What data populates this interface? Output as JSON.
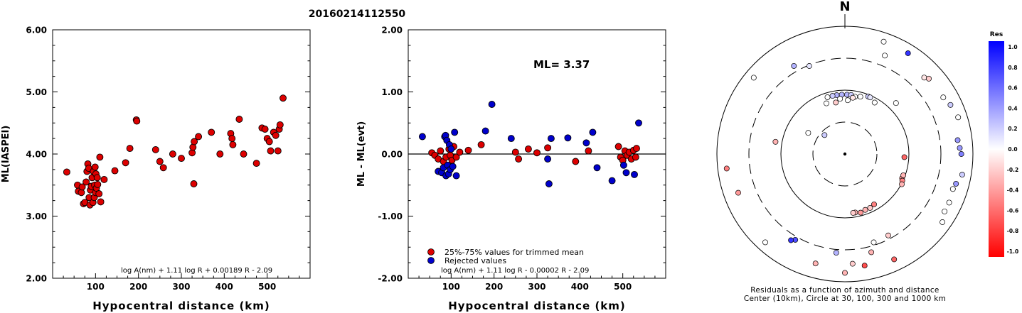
{
  "figure_title": "20160214112550",
  "chart_data": [
    {
      "type": "scatter",
      "xlabel": "Hypocentral distance (km)",
      "ylabel": "ML(IASPEI)",
      "xlim": [
        0,
        600
      ],
      "ylim": [
        2.0,
        6.0
      ],
      "xticks": [
        "100",
        "200",
        "300",
        "400",
        "500"
      ],
      "yticks": [
        "2.00",
        "3.00",
        "4.00",
        "5.00",
        "6.00"
      ],
      "formula": "log A(nm) + 1.11 log R + 0.00189 R - 2.09",
      "marker_color": "#dd0000",
      "points": [
        [
          33,
          3.71
        ],
        [
          58,
          3.5
        ],
        [
          60,
          3.4
        ],
        [
          67,
          3.38
        ],
        [
          69,
          3.47
        ],
        [
          72,
          3.2
        ],
        [
          75,
          3.22
        ],
        [
          78,
          3.55
        ],
        [
          80,
          3.72
        ],
        [
          82,
          3.84
        ],
        [
          84,
          3.77
        ],
        [
          85,
          3.3
        ],
        [
          87,
          3.18
        ],
        [
          88,
          3.42
        ],
        [
          90,
          3.48
        ],
        [
          92,
          3.62
        ],
        [
          94,
          3.22
        ],
        [
          95,
          3.72
        ],
        [
          97,
          3.3
        ],
        [
          98,
          3.5
        ],
        [
          99,
          3.79
        ],
        [
          100,
          3.38
        ],
        [
          101,
          3.68
        ],
        [
          102,
          3.45
        ],
        [
          104,
          3.62
        ],
        [
          105,
          3.51
        ],
        [
          108,
          3.36
        ],
        [
          110,
          3.95
        ],
        [
          112,
          3.23
        ],
        [
          120,
          3.59
        ],
        [
          145,
          3.73
        ],
        [
          170,
          3.86
        ],
        [
          180,
          4.09
        ],
        [
          195,
          4.55
        ],
        [
          196,
          4.53
        ],
        [
          240,
          4.07
        ],
        [
          250,
          3.88
        ],
        [
          258,
          3.78
        ],
        [
          280,
          4.0
        ],
        [
          300,
          3.93
        ],
        [
          325,
          4.02
        ],
        [
          327,
          4.11
        ],
        [
          329,
          3.52
        ],
        [
          330,
          4.2
        ],
        [
          340,
          4.28
        ],
        [
          370,
          4.35
        ],
        [
          390,
          4.0
        ],
        [
          415,
          4.33
        ],
        [
          418,
          4.25
        ],
        [
          420,
          4.15
        ],
        [
          435,
          4.56
        ],
        [
          445,
          4.0
        ],
        [
          475,
          3.85
        ],
        [
          488,
          4.42
        ],
        [
          495,
          4.4
        ],
        [
          500,
          4.25
        ],
        [
          505,
          4.2
        ],
        [
          508,
          4.05
        ],
        [
          515,
          4.35
        ],
        [
          520,
          4.3
        ],
        [
          525,
          4.05
        ],
        [
          528,
          4.4
        ],
        [
          530,
          4.47
        ],
        [
          537,
          4.9
        ]
      ]
    },
    {
      "type": "scatter",
      "xlabel": "Hypocentral distance (km)",
      "ylabel": "ML - ML(evt)",
      "xlim": [
        0,
        600
      ],
      "ylim": [
        -2.0,
        2.0
      ],
      "xticks": [
        "100",
        "200",
        "300",
        "400",
        "500"
      ],
      "yticks": [
        "-2.00",
        "-1.00",
        "0.00",
        "1.00",
        "2.00"
      ],
      "annotation": "ML= 3.37",
      "formula": "log A(nm) + 1.11 log R - 0.00002 R - 2.09",
      "legend": [
        {
          "label": "25%-75% values for trimmed mean",
          "color": "#dd0000"
        },
        {
          "label": "Rejected values",
          "color": "#0000cc"
        }
      ],
      "series": [
        {
          "name": "25%-75% values for trimmed mean",
          "color": "#dd0000",
          "points": [
            [
              55,
              0.02
            ],
            [
              62,
              -0.02
            ],
            [
              70,
              -0.08
            ],
            [
              75,
              0.05
            ],
            [
              82,
              -0.12
            ],
            [
              88,
              -0.05
            ],
            [
              95,
              0.08
            ],
            [
              98,
              -0.02
            ],
            [
              102,
              -0.1
            ],
            [
              106,
              0.12
            ],
            [
              112,
              -0.05
            ],
            [
              120,
              0.03
            ],
            [
              140,
              0.06
            ],
            [
              170,
              0.15
            ],
            [
              250,
              0.03
            ],
            [
              257,
              -0.08
            ],
            [
              280,
              0.08
            ],
            [
              300,
              0.02
            ],
            [
              325,
              0.1
            ],
            [
              390,
              -0.12
            ],
            [
              420,
              0.05
            ],
            [
              490,
              0.12
            ],
            [
              495,
              -0.05
            ],
            [
              500,
              -0.1
            ],
            [
              505,
              0.05
            ],
            [
              510,
              -0.02
            ],
            [
              515,
              0.03
            ],
            [
              520,
              -0.08
            ],
            [
              525,
              0.06
            ],
            [
              530,
              -0.05
            ],
            [
              532,
              0.09
            ]
          ]
        },
        {
          "name": "Rejected values",
          "color": "#0000cc",
          "points": [
            [
              33,
              0.28
            ],
            [
              70,
              -0.28
            ],
            [
              78,
              -0.3
            ],
            [
              82,
              -0.22
            ],
            [
              85,
              0.28
            ],
            [
              87,
              0.3
            ],
            [
              88,
              -0.35
            ],
            [
              90,
              0.22
            ],
            [
              92,
              -0.18
            ],
            [
              94,
              -0.32
            ],
            [
              96,
              0.15
            ],
            [
              98,
              -0.25
            ],
            [
              100,
              0.08
            ],
            [
              104,
              -0.2
            ],
            [
              108,
              0.35
            ],
            [
              112,
              -0.35
            ],
            [
              180,
              0.37
            ],
            [
              195,
              0.8
            ],
            [
              240,
              0.25
            ],
            [
              325,
              -0.08
            ],
            [
              328,
              -0.48
            ],
            [
              333,
              0.25
            ],
            [
              372,
              0.26
            ],
            [
              415,
              0.18
            ],
            [
              430,
              0.35
            ],
            [
              440,
              -0.22
            ],
            [
              475,
              -0.43
            ],
            [
              502,
              -0.18
            ],
            [
              508,
              -0.3
            ],
            [
              527,
              -0.33
            ],
            [
              537,
              0.5
            ]
          ]
        }
      ]
    },
    {
      "type": "polar",
      "north_label": "N",
      "caption_line1": "Residuals as a function of azimuth and distance",
      "caption_line2": "Center (10km), Circle at 30, 100, 300 and 1000 km",
      "rings_km": [
        30,
        100,
        300,
        1000
      ],
      "colorbar": {
        "title": "Res",
        "ticks": [
          "1.0",
          "0.8",
          "0.6",
          "0.4",
          "0.2",
          "0.0",
          "-0.2",
          "-0.4",
          "-0.6",
          "-0.8",
          "-1.0"
        ],
        "high_color": "#0000ff",
        "mid_color": "#ffffff",
        "low_color": "#ff0000"
      },
      "stations": [
        {
          "azimuth_deg": 0,
          "distance_km": 8,
          "residual": null
        },
        {
          "azimuth_deg": 19,
          "distance_km": 1000,
          "residual": 0.0
        },
        {
          "azimuth_deg": 32,
          "distance_km": 1000,
          "residual": 0.8
        },
        {
          "azimuth_deg": 46,
          "distance_km": 700,
          "residual": -0.1
        },
        {
          "azimuth_deg": 48,
          "distance_km": 780,
          "residual": -0.2
        },
        {
          "azimuth_deg": 22,
          "distance_km": 600,
          "residual": 0.0
        },
        {
          "azimuth_deg": 30,
          "distance_km": 100,
          "residual": 0.0
        },
        {
          "azimuth_deg": 60,
          "distance_km": 800,
          "residual": 0.0
        },
        {
          "azimuth_deg": 45,
          "distance_km": 160,
          "residual": 0.0
        },
        {
          "azimuth_deg": 2,
          "distance_km": 100,
          "residual": 0.3
        },
        {
          "azimuth_deg": 357,
          "distance_km": 100,
          "residual": 0.3
        },
        {
          "azimuth_deg": 352,
          "distance_km": 100,
          "residual": 0.3
        },
        {
          "azimuth_deg": 348,
          "distance_km": 100,
          "residual": 0.2
        },
        {
          "azimuth_deg": 343,
          "distance_km": 100,
          "residual": 0.0
        },
        {
          "azimuth_deg": 3,
          "distance_km": 80,
          "residual": 0.0
        },
        {
          "azimuth_deg": 6,
          "distance_km": 100,
          "residual": 0.2
        },
        {
          "azimuth_deg": 10,
          "distance_km": 95,
          "residual": 0.0
        },
        {
          "azimuth_deg": 15,
          "distance_km": 100,
          "residual": 0.0
        },
        {
          "azimuth_deg": 355,
          "distance_km": 85,
          "residual": 0.0
        },
        {
          "azimuth_deg": 340,
          "distance_km": 80,
          "residual": 0.0
        },
        {
          "azimuth_deg": 350,
          "distance_km": 75,
          "residual": -0.2
        },
        {
          "azimuth_deg": 8,
          "distance_km": 90,
          "residual": -0.1
        },
        {
          "azimuth_deg": 22,
          "distance_km": 110,
          "residual": 0.2
        },
        {
          "azimuth_deg": 24,
          "distance_km": 110,
          "residual": 0.1
        },
        {
          "azimuth_deg": 330,
          "distance_km": 500,
          "residual": 0.3
        },
        {
          "azimuth_deg": 338,
          "distance_km": 380,
          "residual": 0.1
        },
        {
          "azimuth_deg": 310,
          "distance_km": 1000,
          "residual": 0.0
        },
        {
          "azimuth_deg": 300,
          "distance_km": 50,
          "residual": 0.0
        },
        {
          "azimuth_deg": 313,
          "distance_km": 28,
          "residual": 0.2
        },
        {
          "azimuth_deg": 65,
          "distance_km": 900,
          "residual": 0.2
        },
        {
          "azimuth_deg": 72,
          "distance_km": 1000,
          "residual": 0.0
        },
        {
          "azimuth_deg": 83,
          "distance_km": 800,
          "residual": 0.4
        },
        {
          "azimuth_deg": 87,
          "distance_km": 850,
          "residual": 0.4
        },
        {
          "azimuth_deg": 90,
          "distance_km": 900,
          "residual": 0.5
        },
        {
          "azimuth_deg": 100,
          "distance_km": 1000,
          "residual": 0.2
        },
        {
          "azimuth_deg": 105,
          "distance_km": 850,
          "residual": 0.4
        },
        {
          "azimuth_deg": 108,
          "distance_km": 800,
          "residual": 0.0
        },
        {
          "azimuth_deg": 115,
          "distance_km": 850,
          "residual": 0.0
        },
        {
          "azimuth_deg": 120,
          "distance_km": 850,
          "residual": 0.0
        },
        {
          "azimuth_deg": 125,
          "distance_km": 1000,
          "residual": 0.0
        },
        {
          "azimuth_deg": 93,
          "distance_km": 100,
          "residual": -0.6
        },
        {
          "azimuth_deg": 113,
          "distance_km": 110,
          "residual": -0.4
        },
        {
          "azimuth_deg": 115,
          "distance_km": 115,
          "residual": -0.5
        },
        {
          "azimuth_deg": 118,
          "distance_km": 120,
          "residual": -0.3
        },
        {
          "azimuth_deg": 110,
          "distance_km": 110,
          "residual": -0.3
        },
        {
          "azimuth_deg": 150,
          "distance_km": 95,
          "residual": -0.5
        },
        {
          "azimuth_deg": 155,
          "distance_km": 100,
          "residual": -0.2
        },
        {
          "azimuth_deg": 160,
          "distance_km": 100,
          "residual": -0.3
        },
        {
          "azimuth_deg": 165,
          "distance_km": 105,
          "residual": -0.4
        },
        {
          "azimuth_deg": 170,
          "distance_km": 100,
          "residual": -0.3
        },
        {
          "azimuth_deg": 172,
          "distance_km": 100,
          "residual": -0.2
        },
        {
          "azimuth_deg": 152,
          "distance_km": 340,
          "residual": -0.2
        },
        {
          "azimuth_deg": 162,
          "distance_km": 350,
          "residual": 0.0
        },
        {
          "azimuth_deg": 165,
          "distance_km": 500,
          "residual": -0.3
        },
        {
          "azimuth_deg": 170,
          "distance_km": 800,
          "residual": -0.7
        },
        {
          "azimuth_deg": 176,
          "distance_km": 700,
          "residual": -0.2
        },
        {
          "azimuth_deg": 155,
          "distance_km": 900,
          "residual": -0.6
        },
        {
          "azimuth_deg": 180,
          "distance_km": 1000,
          "residual": -0.3
        },
        {
          "azimuth_deg": 195,
          "distance_km": 800,
          "residual": -0.3
        },
        {
          "azimuth_deg": 185,
          "distance_km": 450,
          "residual": 0.3
        },
        {
          "azimuth_deg": 210,
          "distance_km": 450,
          "residual": 0.7
        },
        {
          "azimuth_deg": 212,
          "distance_km": 500,
          "residual": 0.8
        },
        {
          "azimuth_deg": 222,
          "distance_km": 1000,
          "residual": 0.0
        },
        {
          "azimuth_deg": 250,
          "distance_km": 800,
          "residual": -0.4
        },
        {
          "azimuth_deg": 263,
          "distance_km": 1000,
          "residual": -0.5
        },
        {
          "azimuth_deg": 280,
          "distance_km": 150,
          "residual": -0.3
        }
      ]
    }
  ]
}
